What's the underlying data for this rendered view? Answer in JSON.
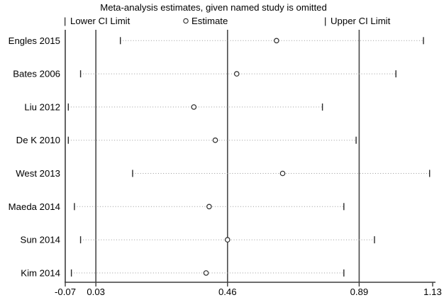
{
  "title": "Meta-analysis estimates, given named study is omitted",
  "legend": {
    "lower_glyph": "|",
    "lower_label": "Lower CI Limit",
    "estimate_label": "Estimate",
    "upper_glyph": "|",
    "upper_label": "Upper CI Limit"
  },
  "chart_data": {
    "type": "scatter",
    "subtype": "forest-plot-leave-one-out-sensitivity",
    "title": "Meta-analysis estimates, given named study is omitted",
    "categories": [
      "Engles 2015",
      "Bates 2006",
      "Liu 2012",
      "De K 2010",
      "West 2013",
      "Maeda 2014",
      "Sun 2014",
      "Kim 2014"
    ],
    "series": [
      {
        "name": "Lower CI Limit",
        "values": [
          0.11,
          -0.02,
          -0.06,
          -0.06,
          0.15,
          -0.04,
          -0.02,
          -0.05
        ]
      },
      {
        "name": "Estimate",
        "values": [
          0.62,
          0.49,
          0.35,
          0.42,
          0.64,
          0.4,
          0.46,
          0.39
        ]
      },
      {
        "name": "Upper CI Limit",
        "values": [
          1.1,
          1.01,
          0.77,
          0.88,
          1.12,
          0.84,
          0.94,
          0.84
        ]
      }
    ],
    "xlim": [
      -0.07,
      1.13
    ],
    "x_ticks": [
      {
        "value": -0.07,
        "label": "-0.07"
      },
      {
        "value": 0.03,
        "label": "0.03"
      },
      {
        "value": 0.46,
        "label": "0.46"
      },
      {
        "value": 0.89,
        "label": "0.89"
      },
      {
        "value": 1.13,
        "label": "1.13"
      }
    ],
    "reference_lines": [
      0.03,
      0.46,
      0.89
    ],
    "legend_position": "top",
    "grid": false
  },
  "colors": {
    "background": "#ffffff",
    "text": "#000000",
    "axis": "#3d3d3d",
    "reference_line": "#4a4a4a",
    "marker": "#2b2b2b",
    "connector": "#9a9a9a"
  }
}
